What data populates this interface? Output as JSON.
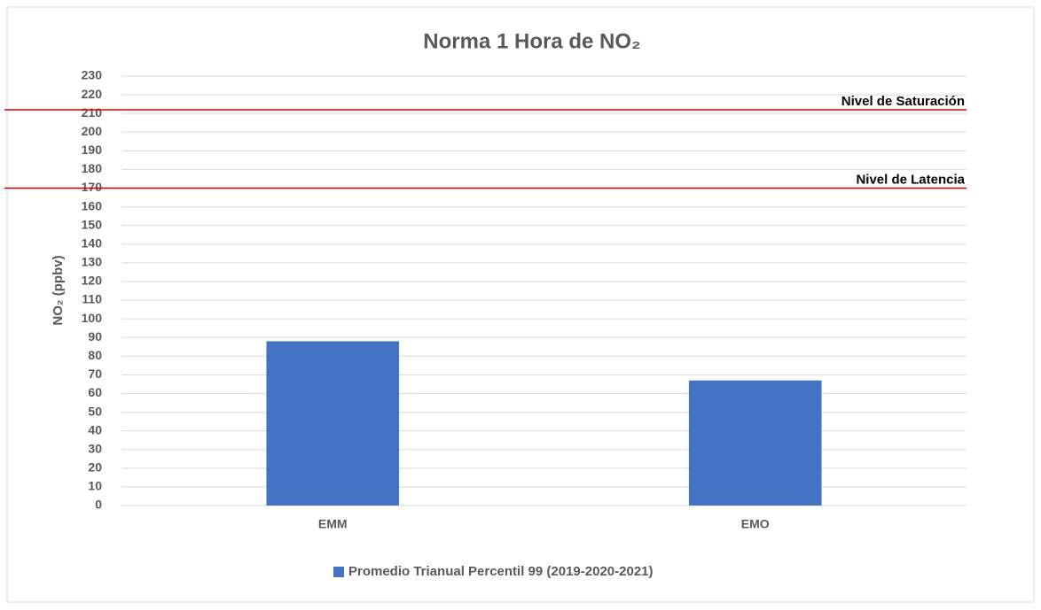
{
  "chart_data": {
    "type": "bar",
    "title": "Norma 1 Hora de NO₂",
    "y_label": "NO₂ (ppbv)",
    "categories": [
      "EMM",
      "EMO"
    ],
    "series": [
      {
        "name": "Promedio Trianual Percentil 99 (2019-2020-2021)",
        "color": "#4472c4",
        "values": [
          88,
          67
        ]
      }
    ],
    "reference_lines": [
      {
        "value": 212,
        "label": "Nivel de Saturación",
        "color": "#e00000"
      },
      {
        "value": 170,
        "label": "Nivel de Latencia",
        "color": "#c00000"
      }
    ],
    "ylim": [
      0,
      230
    ],
    "yticks": [
      0,
      10,
      20,
      30,
      40,
      50,
      60,
      70,
      80,
      90,
      100,
      110,
      120,
      130,
      140,
      150,
      160,
      170,
      180,
      190,
      200,
      210,
      220,
      230
    ],
    "grid": true,
    "legend": "bottom"
  }
}
